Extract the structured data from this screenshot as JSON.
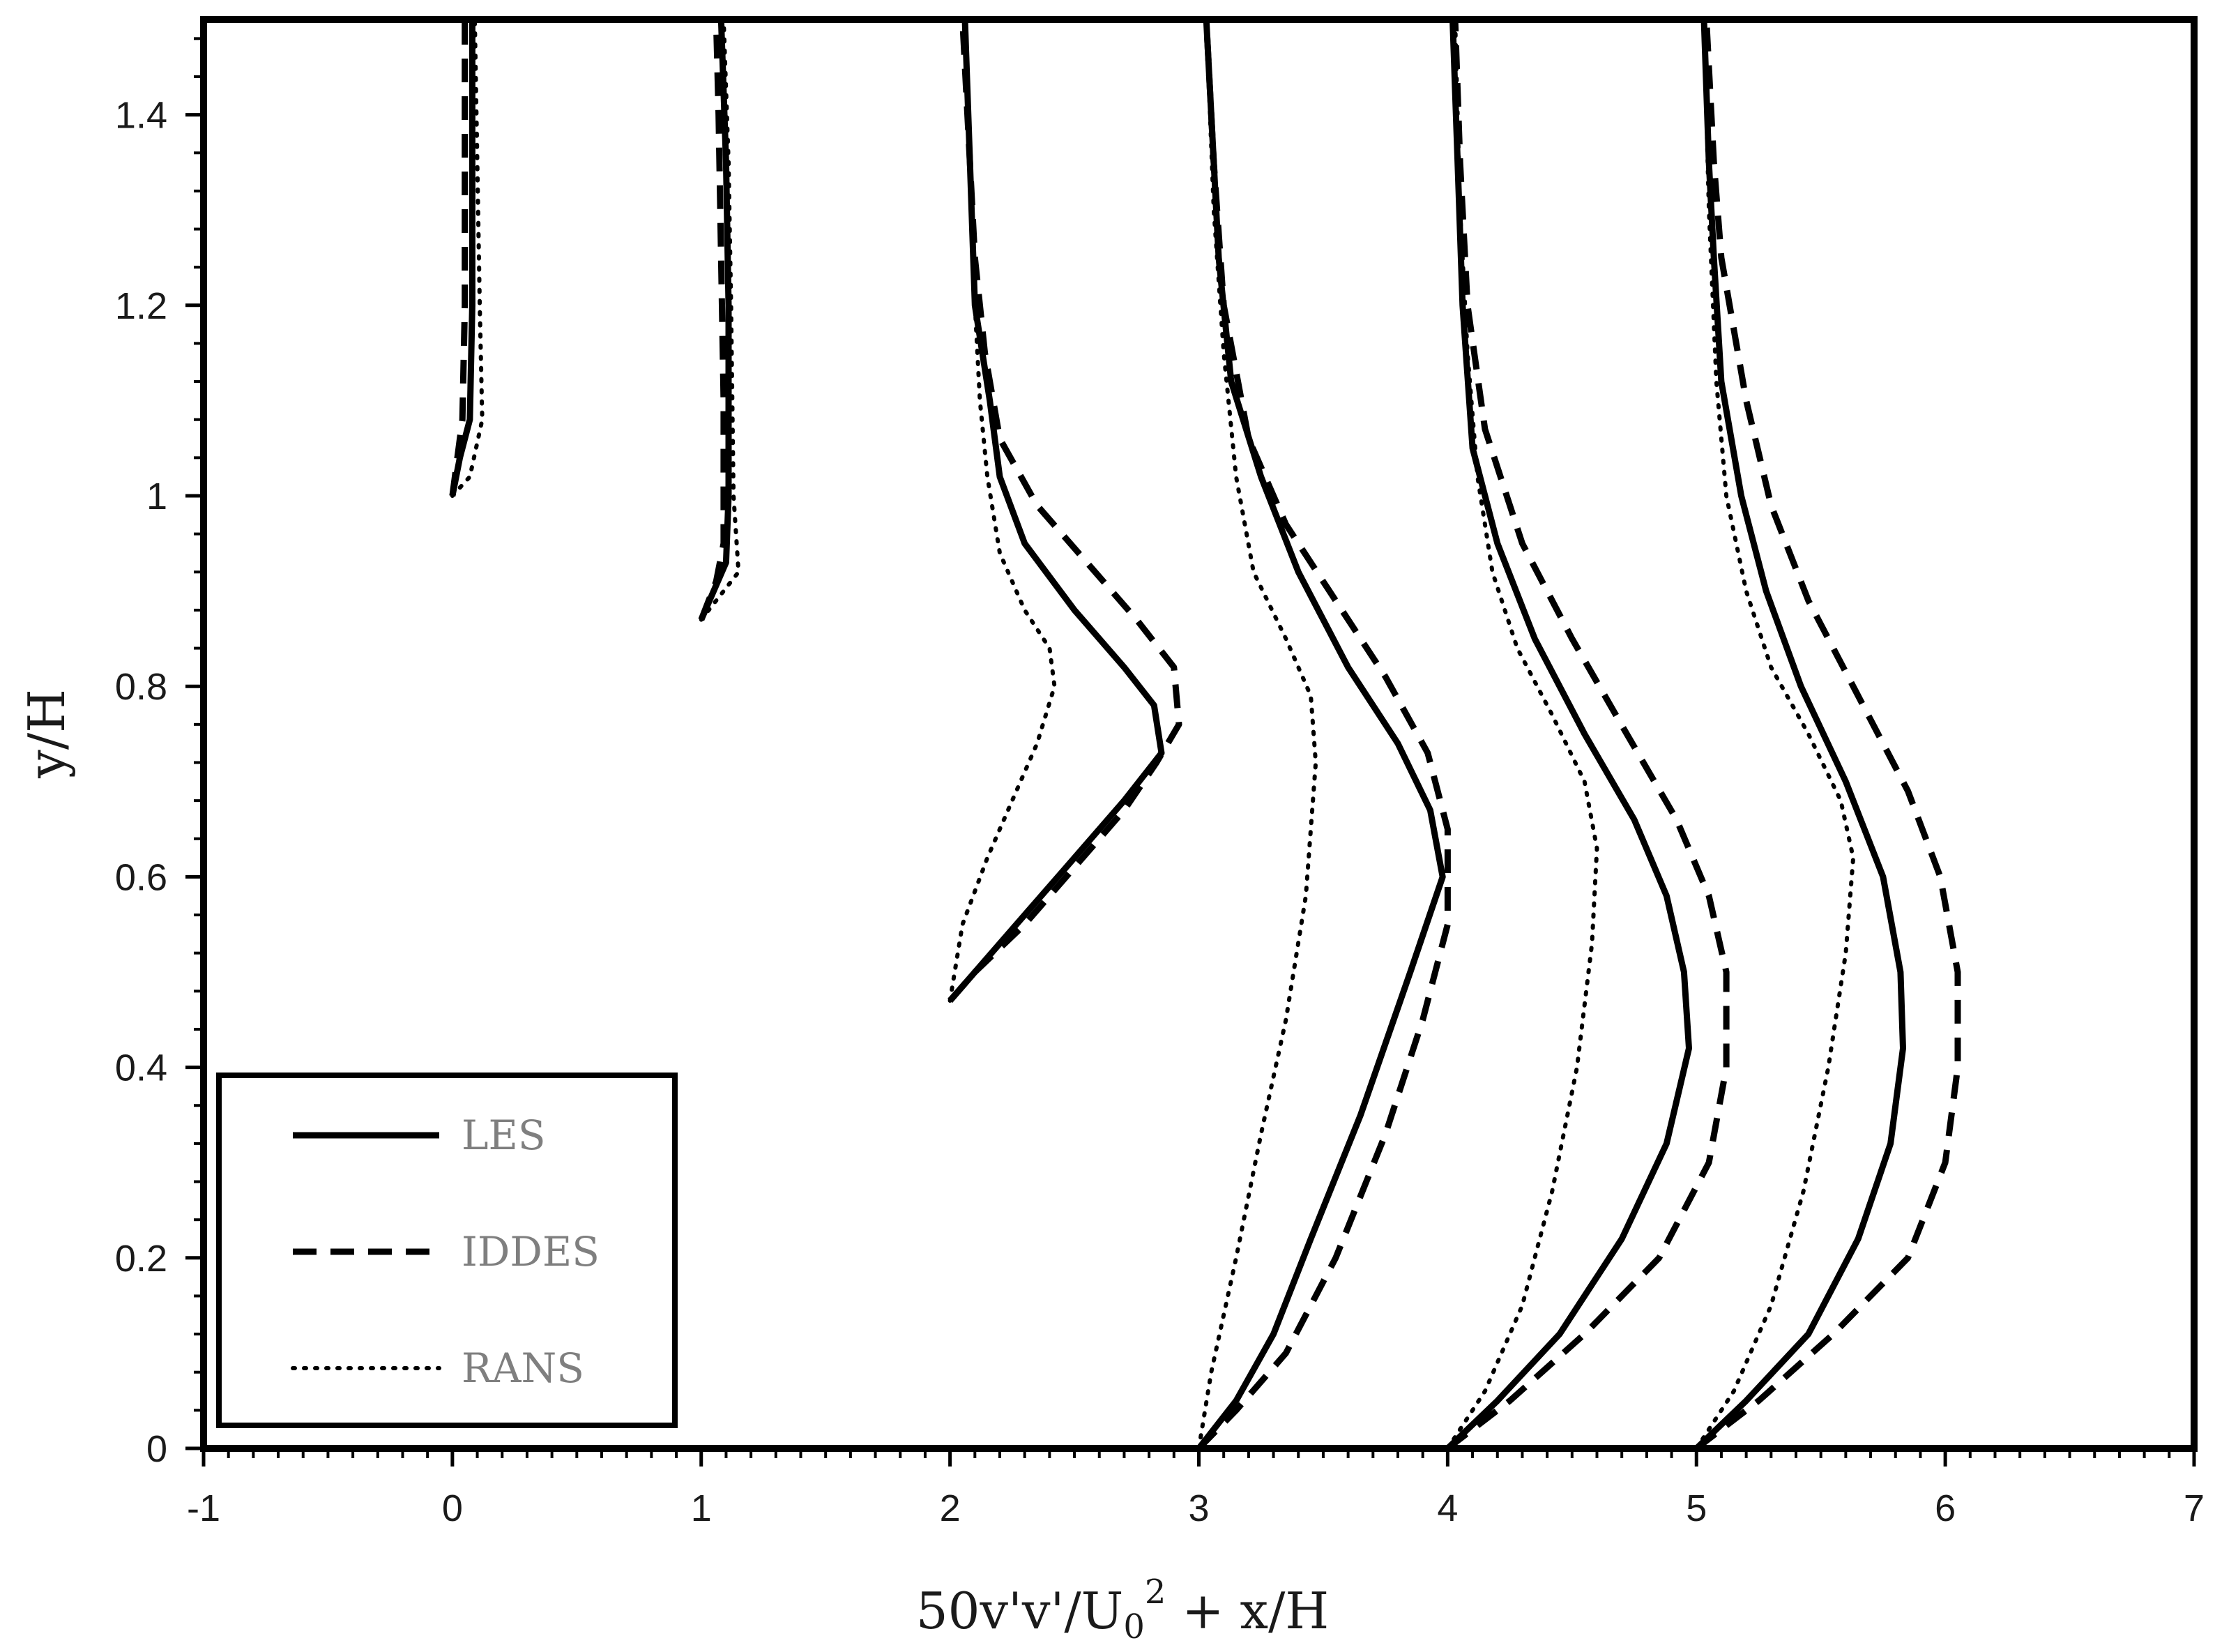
{
  "chart_data": {
    "type": "line",
    "title": "",
    "xlabel": "50v'v'/U₀² + x/H",
    "xlabel_parts": {
      "base": "50v'v'/U",
      "sub": "0",
      "sup": "2",
      "rest": " + x/H"
    },
    "ylabel": "y/H",
    "xlim": [
      -1,
      7
    ],
    "ylim": [
      0,
      1.5
    ],
    "xticks": [
      -1,
      0,
      1,
      2,
      3,
      4,
      5,
      6,
      7
    ],
    "yticks": [
      0,
      0.2,
      0.4,
      0.6,
      0.8,
      1,
      1.2,
      1.4
    ],
    "xtick_labels": [
      "-1",
      "0",
      "1",
      "2",
      "3",
      "4",
      "5",
      "6",
      "7"
    ],
    "ytick_labels": [
      "0",
      "0.2",
      "0.4",
      "0.6",
      "0.8",
      "1",
      "1.2",
      "1.4"
    ],
    "grid": false,
    "legend_position": "bottom-left",
    "legend": [
      {
        "name": "LES",
        "style": "solid"
      },
      {
        "name": "IDDES",
        "style": "dashed"
      },
      {
        "name": "RANS",
        "style": "dotted"
      }
    ],
    "series": [
      {
        "name": "LES",
        "style": "solid",
        "station_x": 0,
        "points": [
          [
            0.0,
            1.0
          ],
          [
            0.03,
            1.04
          ],
          [
            0.07,
            1.08
          ],
          [
            0.08,
            1.2
          ],
          [
            0.08,
            1.35
          ],
          [
            0.08,
            1.5
          ]
        ]
      },
      {
        "name": "IDDES",
        "style": "dashed",
        "station_x": 0,
        "points": [
          [
            0.0,
            1.0
          ],
          [
            0.02,
            1.04
          ],
          [
            0.04,
            1.08
          ],
          [
            0.05,
            1.2
          ],
          [
            0.05,
            1.35
          ],
          [
            0.05,
            1.5
          ]
        ]
      },
      {
        "name": "RANS",
        "style": "dotted",
        "station_x": 0,
        "points": [
          [
            0.0,
            1.0
          ],
          [
            0.07,
            1.02
          ],
          [
            0.12,
            1.08
          ],
          [
            0.11,
            1.2
          ],
          [
            0.1,
            1.35
          ],
          [
            0.09,
            1.5
          ]
        ]
      },
      {
        "name": "LES",
        "style": "solid",
        "station_x": 1,
        "points": [
          [
            1.0,
            0.87
          ],
          [
            1.05,
            0.9
          ],
          [
            1.1,
            0.93
          ],
          [
            1.11,
            1.0
          ],
          [
            1.11,
            1.2
          ],
          [
            1.1,
            1.35
          ],
          [
            1.08,
            1.5
          ]
        ]
      },
      {
        "name": "IDDES",
        "style": "dashed",
        "station_x": 1,
        "points": [
          [
            1.0,
            0.87
          ],
          [
            1.06,
            0.91
          ],
          [
            1.09,
            0.95
          ],
          [
            1.09,
            1.1
          ],
          [
            1.08,
            1.25
          ],
          [
            1.07,
            1.4
          ],
          [
            1.06,
            1.5
          ]
        ]
      },
      {
        "name": "RANS",
        "style": "dotted",
        "station_x": 1,
        "points": [
          [
            1.0,
            0.87
          ],
          [
            1.09,
            0.9
          ],
          [
            1.15,
            0.92
          ],
          [
            1.13,
            1.0
          ],
          [
            1.12,
            1.2
          ],
          [
            1.11,
            1.35
          ],
          [
            1.09,
            1.5
          ]
        ]
      },
      {
        "name": "LES",
        "style": "solid",
        "station_x": 2,
        "points": [
          [
            2.0,
            0.47
          ],
          [
            2.1,
            0.5
          ],
          [
            2.3,
            0.56
          ],
          [
            2.5,
            0.62
          ],
          [
            2.7,
            0.68
          ],
          [
            2.85,
            0.73
          ],
          [
            2.82,
            0.78
          ],
          [
            2.7,
            0.82
          ],
          [
            2.5,
            0.88
          ],
          [
            2.3,
            0.95
          ],
          [
            2.2,
            1.02
          ],
          [
            2.16,
            1.1
          ],
          [
            2.1,
            1.2
          ],
          [
            2.08,
            1.35
          ],
          [
            2.06,
            1.5
          ]
        ]
      },
      {
        "name": "IDDES",
        "style": "dashed",
        "station_x": 2,
        "points": [
          [
            2.0,
            0.47
          ],
          [
            2.1,
            0.5
          ],
          [
            2.3,
            0.55
          ],
          [
            2.5,
            0.61
          ],
          [
            2.7,
            0.67
          ],
          [
            2.83,
            0.72
          ],
          [
            2.92,
            0.76
          ],
          [
            2.9,
            0.82
          ],
          [
            2.75,
            0.87
          ],
          [
            2.55,
            0.93
          ],
          [
            2.35,
            0.99
          ],
          [
            2.2,
            1.06
          ],
          [
            2.14,
            1.15
          ],
          [
            2.1,
            1.25
          ],
          [
            2.07,
            1.4
          ],
          [
            2.05,
            1.5
          ]
        ]
      },
      {
        "name": "RANS",
        "style": "dotted",
        "station_x": 2,
        "points": [
          [
            2.0,
            0.47
          ],
          [
            2.05,
            0.55
          ],
          [
            2.15,
            0.62
          ],
          [
            2.25,
            0.68
          ],
          [
            2.35,
            0.74
          ],
          [
            2.42,
            0.8
          ],
          [
            2.4,
            0.84
          ],
          [
            2.3,
            0.88
          ],
          [
            2.2,
            0.94
          ],
          [
            2.15,
            1.02
          ],
          [
            2.12,
            1.1
          ],
          [
            2.1,
            1.2
          ],
          [
            2.08,
            1.35
          ],
          [
            2.06,
            1.5
          ]
        ]
      },
      {
        "name": "LES",
        "style": "solid",
        "station_x": 3,
        "points": [
          [
            3.0,
            0.0
          ],
          [
            3.15,
            0.05
          ],
          [
            3.3,
            0.12
          ],
          [
            3.45,
            0.22
          ],
          [
            3.65,
            0.35
          ],
          [
            3.85,
            0.5
          ],
          [
            3.98,
            0.6
          ],
          [
            3.93,
            0.67
          ],
          [
            3.8,
            0.74
          ],
          [
            3.6,
            0.82
          ],
          [
            3.4,
            0.92
          ],
          [
            3.25,
            1.02
          ],
          [
            3.13,
            1.12
          ],
          [
            3.08,
            1.25
          ],
          [
            3.06,
            1.35
          ],
          [
            3.03,
            1.5
          ]
        ]
      },
      {
        "name": "IDDES",
        "style": "dashed",
        "station_x": 3,
        "points": [
          [
            3.0,
            0.0
          ],
          [
            3.15,
            0.04
          ],
          [
            3.35,
            0.1
          ],
          [
            3.55,
            0.2
          ],
          [
            3.75,
            0.33
          ],
          [
            3.9,
            0.45
          ],
          [
            4.0,
            0.55
          ],
          [
            4.0,
            0.65
          ],
          [
            3.92,
            0.73
          ],
          [
            3.75,
            0.81
          ],
          [
            3.55,
            0.89
          ],
          [
            3.35,
            0.97
          ],
          [
            3.2,
            1.06
          ],
          [
            3.1,
            1.2
          ],
          [
            3.06,
            1.35
          ],
          [
            3.03,
            1.5
          ]
        ]
      },
      {
        "name": "RANS",
        "style": "dotted",
        "station_x": 3,
        "points": [
          [
            3.0,
            0.0
          ],
          [
            3.05,
            0.08
          ],
          [
            3.15,
            0.2
          ],
          [
            3.25,
            0.33
          ],
          [
            3.35,
            0.45
          ],
          [
            3.43,
            0.58
          ],
          [
            3.47,
            0.72
          ],
          [
            3.45,
            0.79
          ],
          [
            3.35,
            0.85
          ],
          [
            3.22,
            0.92
          ],
          [
            3.15,
            1.02
          ],
          [
            3.1,
            1.15
          ],
          [
            3.06,
            1.3
          ],
          [
            3.03,
            1.5
          ]
        ]
      },
      {
        "name": "LES",
        "style": "solid",
        "station_x": 4,
        "points": [
          [
            4.0,
            0.0
          ],
          [
            4.2,
            0.05
          ],
          [
            4.45,
            0.12
          ],
          [
            4.7,
            0.22
          ],
          [
            4.88,
            0.32
          ],
          [
            4.97,
            0.42
          ],
          [
            4.95,
            0.5
          ],
          [
            4.88,
            0.58
          ],
          [
            4.75,
            0.66
          ],
          [
            4.55,
            0.75
          ],
          [
            4.35,
            0.85
          ],
          [
            4.2,
            0.95
          ],
          [
            4.1,
            1.05
          ],
          [
            4.06,
            1.2
          ],
          [
            4.04,
            1.35
          ],
          [
            4.02,
            1.5
          ]
        ]
      },
      {
        "name": "IDDES",
        "style": "dashed",
        "station_x": 4,
        "points": [
          [
            4.0,
            0.0
          ],
          [
            4.25,
            0.05
          ],
          [
            4.55,
            0.12
          ],
          [
            4.85,
            0.2
          ],
          [
            5.05,
            0.3
          ],
          [
            5.12,
            0.4
          ],
          [
            5.12,
            0.5
          ],
          [
            5.05,
            0.58
          ],
          [
            4.92,
            0.66
          ],
          [
            4.72,
            0.75
          ],
          [
            4.5,
            0.85
          ],
          [
            4.3,
            0.95
          ],
          [
            4.15,
            1.07
          ],
          [
            4.08,
            1.2
          ],
          [
            4.05,
            1.35
          ],
          [
            4.03,
            1.5
          ]
        ]
      },
      {
        "name": "RANS",
        "style": "dotted",
        "station_x": 4,
        "points": [
          [
            4.0,
            0.0
          ],
          [
            4.15,
            0.06
          ],
          [
            4.3,
            0.15
          ],
          [
            4.42,
            0.27
          ],
          [
            4.52,
            0.4
          ],
          [
            4.58,
            0.53
          ],
          [
            4.6,
            0.63
          ],
          [
            4.55,
            0.7
          ],
          [
            4.42,
            0.77
          ],
          [
            4.28,
            0.84
          ],
          [
            4.18,
            0.92
          ],
          [
            4.12,
            1.02
          ],
          [
            4.08,
            1.15
          ],
          [
            4.05,
            1.3
          ],
          [
            4.03,
            1.5
          ]
        ]
      },
      {
        "name": "LES",
        "style": "solid",
        "station_x": 5,
        "points": [
          [
            5.0,
            0.0
          ],
          [
            5.2,
            0.05
          ],
          [
            5.45,
            0.12
          ],
          [
            5.65,
            0.22
          ],
          [
            5.78,
            0.32
          ],
          [
            5.83,
            0.42
          ],
          [
            5.82,
            0.5
          ],
          [
            5.75,
            0.6
          ],
          [
            5.6,
            0.7
          ],
          [
            5.42,
            0.8
          ],
          [
            5.28,
            0.9
          ],
          [
            5.18,
            1.0
          ],
          [
            5.1,
            1.12
          ],
          [
            5.07,
            1.25
          ],
          [
            5.05,
            1.35
          ],
          [
            5.03,
            1.5
          ]
        ]
      },
      {
        "name": "IDDES",
        "style": "dashed",
        "station_x": 5,
        "points": [
          [
            5.0,
            0.0
          ],
          [
            5.25,
            0.05
          ],
          [
            5.55,
            0.12
          ],
          [
            5.85,
            0.2
          ],
          [
            6.0,
            0.3
          ],
          [
            6.05,
            0.4
          ],
          [
            6.05,
            0.5
          ],
          [
            5.98,
            0.6
          ],
          [
            5.85,
            0.69
          ],
          [
            5.65,
            0.79
          ],
          [
            5.45,
            0.89
          ],
          [
            5.3,
            0.99
          ],
          [
            5.2,
            1.1
          ],
          [
            5.1,
            1.25
          ],
          [
            5.07,
            1.35
          ],
          [
            5.04,
            1.5
          ]
        ]
      },
      {
        "name": "RANS",
        "style": "dotted",
        "station_x": 5,
        "points": [
          [
            5.0,
            0.0
          ],
          [
            5.15,
            0.06
          ],
          [
            5.3,
            0.15
          ],
          [
            5.43,
            0.27
          ],
          [
            5.53,
            0.4
          ],
          [
            5.6,
            0.52
          ],
          [
            5.63,
            0.62
          ],
          [
            5.58,
            0.68
          ],
          [
            5.45,
            0.75
          ],
          [
            5.3,
            0.82
          ],
          [
            5.2,
            0.9
          ],
          [
            5.12,
            1.0
          ],
          [
            5.08,
            1.12
          ],
          [
            5.05,
            1.3
          ],
          [
            5.03,
            1.5
          ]
        ]
      }
    ]
  }
}
